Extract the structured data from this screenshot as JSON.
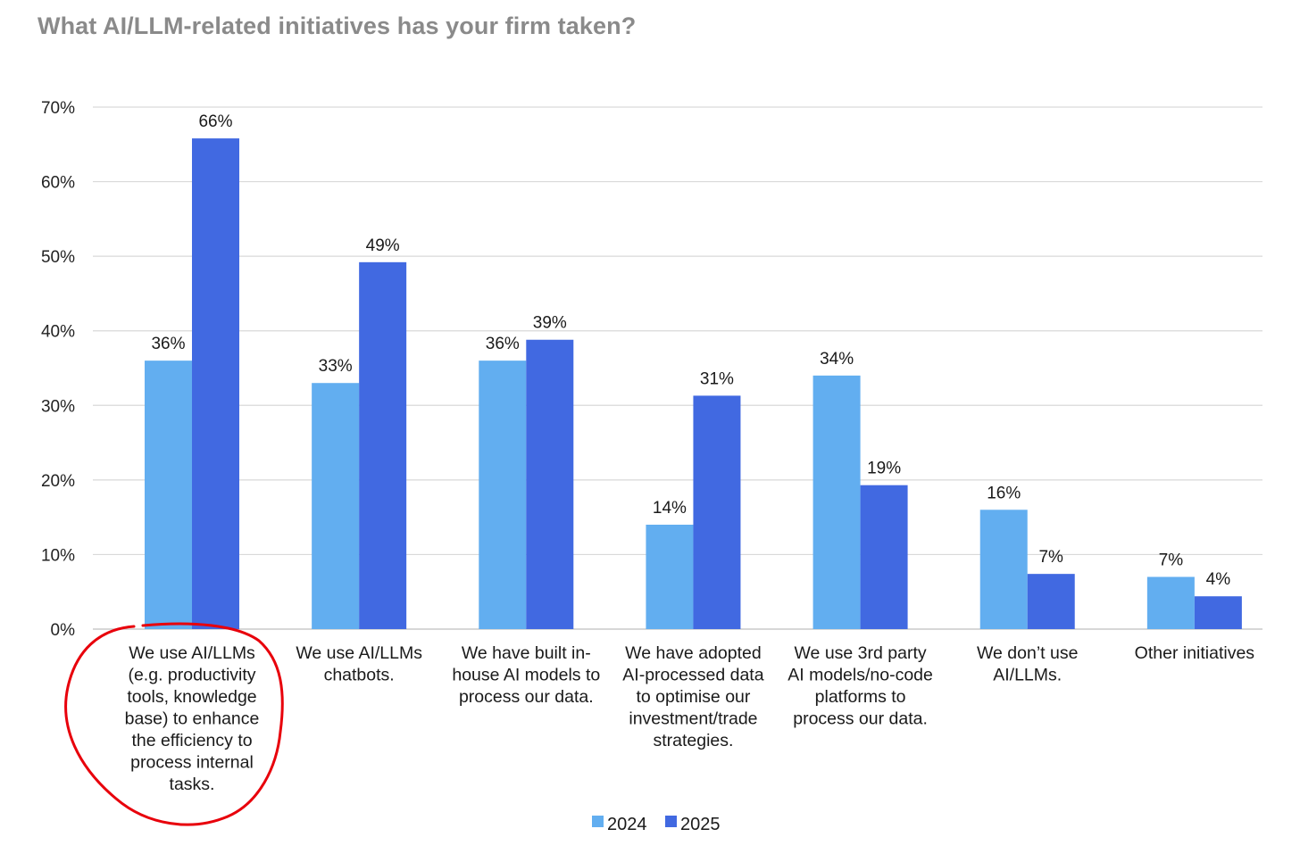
{
  "chart_data": {
    "type": "bar",
    "title": "What AI/LLM-related initiatives has your firm taken?",
    "xlabel": "",
    "ylabel": "",
    "ylim": [
      0,
      70
    ],
    "yticks": [
      "0%",
      "10%",
      "20%",
      "30%",
      "40%",
      "50%",
      "60%",
      "70%"
    ],
    "grid": true,
    "legend_position": "bottom",
    "categories": [
      [
        "We use AI/LLMs",
        "(e.g. productivity",
        "tools, knowledge",
        "base) to enhance",
        "the efficiency to",
        "process internal",
        "tasks."
      ],
      [
        "We use AI/LLMs",
        "chatbots."
      ],
      [
        "We have built in-",
        "house AI models to",
        "process our data."
      ],
      [
        "We have adopted",
        "AI-processed data",
        "to optimise our",
        "investment/trade",
        "strategies."
      ],
      [
        "We use 3rd party",
        "AI models/no-code",
        "platforms to",
        "process our data."
      ],
      [
        "We don’t use",
        "AI/LLMs."
      ],
      [
        "Other initiatives"
      ]
    ],
    "series": [
      {
        "name": "2024",
        "color": "#62AEF0",
        "values": [
          36,
          33,
          36,
          14,
          34,
          16,
          7
        ],
        "labels": [
          "36%",
          "33%",
          "36%",
          "14%",
          "34%",
          "16%",
          "7%"
        ]
      },
      {
        "name": "2025",
        "color": "#4169E1",
        "values": [
          65.8,
          49.2,
          38.8,
          31.3,
          19.3,
          7.4,
          4.4
        ],
        "labels": [
          "66%",
          "49%",
          "39%",
          "31%",
          "19%",
          "7%",
          "4%"
        ]
      }
    ],
    "annotation": {
      "type": "hand-drawn-circle",
      "color": "#E8000B",
      "target_category_index": 0
    }
  }
}
